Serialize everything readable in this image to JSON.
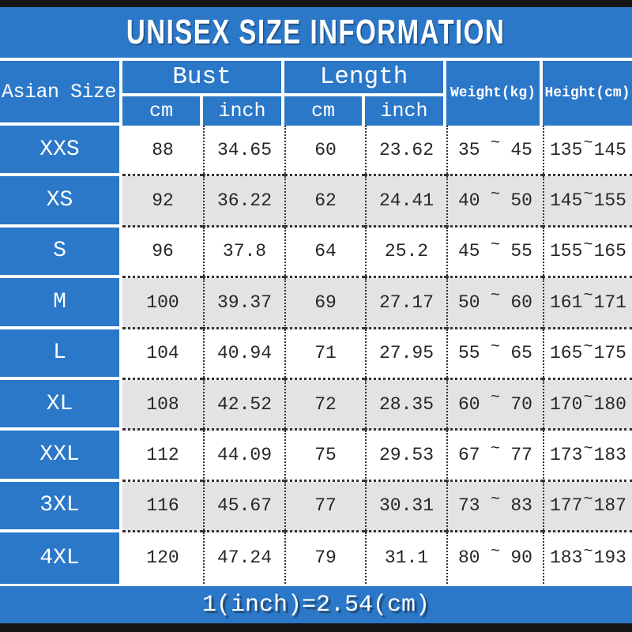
{
  "title": "UNISEX SIZE INFORMATION",
  "footer": {
    "note": "1(inch)=2.54(cm)"
  },
  "chars": {
    "tilde": "~"
  },
  "colors": {
    "accent_blue": "#2b77c8",
    "alt_row_gray": "#e4e2e4",
    "top_bottom_bar_black": "#161616",
    "header_text": "#ffffff",
    "data_text": "#262626"
  },
  "chart_data": {
    "type": "table",
    "title": "UNISEX SIZE INFORMATION",
    "header": {
      "asian_size": "Asian Size",
      "bust": "Bust",
      "length": "Length",
      "cm": "cm",
      "inch": "inch",
      "weight": "Weight(kg)",
      "height": "Height(cm)"
    },
    "columns": [
      "Asian Size",
      "Bust cm",
      "Bust inch",
      "Length cm",
      "Length inch",
      "Weight(kg)",
      "Height(cm)"
    ],
    "rows": [
      {
        "size": "XXS",
        "bust_cm": "88",
        "bust_inch": "34.65",
        "length_cm": "60",
        "length_inch": "23.62",
        "weight_min": "35",
        "weight_max": "45",
        "height_min": "135",
        "height_max": "145"
      },
      {
        "size": "XS",
        "bust_cm": "92",
        "bust_inch": "36.22",
        "length_cm": "62",
        "length_inch": "24.41",
        "weight_min": "40",
        "weight_max": "50",
        "height_min": "145",
        "height_max": "155"
      },
      {
        "size": "S",
        "bust_cm": "96",
        "bust_inch": "37.8",
        "length_cm": "64",
        "length_inch": "25.2",
        "weight_min": "45",
        "weight_max": "55",
        "height_min": "155",
        "height_max": "165"
      },
      {
        "size": "M",
        "bust_cm": "100",
        "bust_inch": "39.37",
        "length_cm": "69",
        "length_inch": "27.17",
        "weight_min": "50",
        "weight_max": "60",
        "height_min": "161",
        "height_max": "171"
      },
      {
        "size": "L",
        "bust_cm": "104",
        "bust_inch": "40.94",
        "length_cm": "71",
        "length_inch": "27.95",
        "weight_min": "55",
        "weight_max": "65",
        "height_min": "165",
        "height_max": "175"
      },
      {
        "size": "XL",
        "bust_cm": "108",
        "bust_inch": "42.52",
        "length_cm": "72",
        "length_inch": "28.35",
        "weight_min": "60",
        "weight_max": "70",
        "height_min": "170",
        "height_max": "180"
      },
      {
        "size": "XXL",
        "bust_cm": "112",
        "bust_inch": "44.09",
        "length_cm": "75",
        "length_inch": "29.53",
        "weight_min": "67",
        "weight_max": "77",
        "height_min": "173",
        "height_max": "183"
      },
      {
        "size": "3XL",
        "bust_cm": "116",
        "bust_inch": "45.67",
        "length_cm": "77",
        "length_inch": "30.31",
        "weight_min": "73",
        "weight_max": "83",
        "height_min": "177",
        "height_max": "187"
      },
      {
        "size": "4XL",
        "bust_cm": "120",
        "bust_inch": "47.24",
        "length_cm": "79",
        "length_inch": "31.1",
        "weight_min": "80",
        "weight_max": "90",
        "height_min": "183",
        "height_max": "193"
      }
    ]
  }
}
